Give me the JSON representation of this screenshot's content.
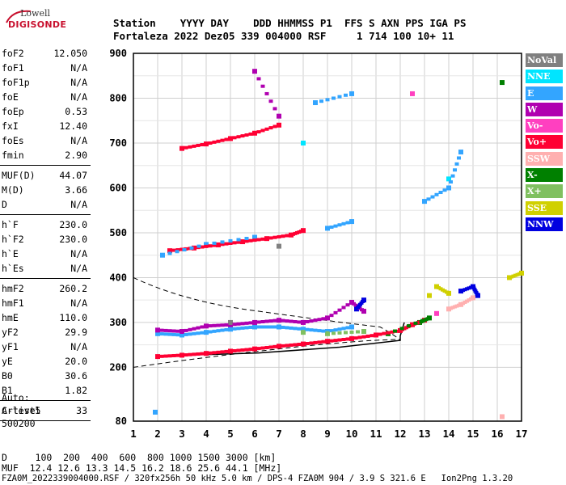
{
  "logo": {
    "top": "Lowell",
    "bottom": "DIGISONDE"
  },
  "header": {
    "line1": "Station    YYYY DAY    DDD HHMMSS P1  FFS S AXN PPS IGA PS",
    "line2": "Fortaleza 2022 Dez05 339 004000 RSF     1 714 100 10+ 11"
  },
  "params": [
    {
      "k": "foF2",
      "v": "12.050"
    },
    {
      "k": "foF1",
      "v": "N/A"
    },
    {
      "k": "foF1p",
      "v": "N/A"
    },
    {
      "k": "foE",
      "v": "N/A"
    },
    {
      "k": "foEp",
      "v": "0.53"
    },
    {
      "k": "fxI",
      "v": "12.40"
    },
    {
      "k": "foEs",
      "v": "N/A"
    },
    {
      "k": "fmin",
      "v": "2.90"
    },
    {
      "sep": true
    },
    {
      "k": "MUF(D)",
      "v": "44.07"
    },
    {
      "k": "M(D)",
      "v": "3.66"
    },
    {
      "k": "D",
      "v": "N/A"
    },
    {
      "sep": true
    },
    {
      "k": "h`F",
      "v": "230.0"
    },
    {
      "k": "h`F2",
      "v": "230.0"
    },
    {
      "k": "h`E",
      "v": "N/A"
    },
    {
      "k": "h`Es",
      "v": "N/A"
    },
    {
      "sep": true
    },
    {
      "k": "hmF2",
      "v": "260.2"
    },
    {
      "k": "hmF1",
      "v": "N/A"
    },
    {
      "k": "hmE",
      "v": "110.0"
    },
    {
      "k": "yF2",
      "v": "29.9"
    },
    {
      "k": "yF1",
      "v": "N/A"
    },
    {
      "k": "yE",
      "v": "20.0"
    },
    {
      "k": "B0",
      "v": "30.6"
    },
    {
      "k": "B1",
      "v": "1.82"
    },
    {
      "sep": true
    },
    {
      "k": "C-level",
      "v": "33"
    },
    {
      "sep": true
    }
  ],
  "auto": [
    "Auto:",
    "Artist5",
    "500200"
  ],
  "legend": [
    {
      "label": "NoVal",
      "color": "#808080"
    },
    {
      "label": "NNE",
      "color": "#00e5ff"
    },
    {
      "label": "E",
      "color": "#33a5ff"
    },
    {
      "label": "W",
      "color": "#b000b0"
    },
    {
      "label": "Vo-",
      "color": "#ff40c0"
    },
    {
      "label": "Vo+",
      "color": "#ff0033"
    },
    {
      "label": "SSW",
      "color": "#ffb0b0"
    },
    {
      "label": "X-",
      "color": "#008000"
    },
    {
      "label": "X+",
      "color": "#80c060"
    },
    {
      "label": "SSE",
      "color": "#d0d000"
    },
    {
      "label": "NNW",
      "color": "#0000e0"
    }
  ],
  "footer": {
    "line1": "D     100  200  400  600  800 1000 1500 3000 [km]",
    "line2": "MUF  12.4 12.6 13.3 14.5 16.2 18.6 25.6 44.1 [MHz]",
    "line3": "FZA0M_2022339004000.RSF / 320fx256h 50 kHz 5.0 km / DPS-4 FZA0M 904 / 3.9 S 321.6 E   Ion2Png 1.3.20"
  },
  "chart_data": {
    "type": "scatter",
    "title": "",
    "xlabel": "",
    "ylabel": "",
    "xlim": [
      1,
      17
    ],
    "ylim": [
      80,
      900
    ],
    "xticks": [
      1,
      2,
      3,
      4,
      5,
      6,
      7,
      8,
      9,
      10,
      11,
      12,
      13,
      14,
      15,
      16,
      17
    ],
    "yticks": [
      80,
      200,
      300,
      400,
      500,
      600,
      700,
      800,
      900
    ],
    "grid": true,
    "series": [
      {
        "name": "Vo+",
        "color": "#ff0033",
        "points": [
          [
            2.0,
            224
          ],
          [
            3.0,
            227
          ],
          [
            4.0,
            231
          ],
          [
            5.0,
            236
          ],
          [
            6.0,
            241
          ],
          [
            7.0,
            247
          ],
          [
            8.0,
            252
          ],
          [
            9.0,
            258
          ],
          [
            10.0,
            264
          ],
          [
            11.0,
            272
          ],
          [
            12.0,
            282
          ],
          [
            12.5,
            295
          ],
          [
            13.0,
            305
          ],
          [
            2.5,
            460
          ],
          [
            3.5,
            466
          ],
          [
            4.5,
            473
          ],
          [
            5.5,
            480
          ],
          [
            6.5,
            487
          ],
          [
            7.5,
            495
          ],
          [
            8.0,
            505
          ],
          [
            3.0,
            688
          ],
          [
            4.0,
            698
          ],
          [
            5.0,
            710
          ],
          [
            6.0,
            722
          ],
          [
            7.0,
            740
          ]
        ]
      },
      {
        "name": "E",
        "color": "#33a5ff",
        "points": [
          [
            2.0,
            275
          ],
          [
            3.0,
            272
          ],
          [
            4.0,
            278
          ],
          [
            5.0,
            285
          ],
          [
            6.0,
            290
          ],
          [
            7.0,
            290
          ],
          [
            8.0,
            285
          ],
          [
            9.0,
            280
          ],
          [
            10.0,
            290
          ],
          [
            1.9,
            100
          ],
          [
            2.2,
            450
          ],
          [
            4.0,
            474
          ],
          [
            6.0,
            490
          ],
          [
            9.0,
            510
          ],
          [
            10.0,
            525
          ],
          [
            13.0,
            570
          ],
          [
            14.0,
            600
          ],
          [
            14.5,
            680
          ],
          [
            8.5,
            790
          ],
          [
            10.0,
            810
          ]
        ]
      },
      {
        "name": "W",
        "color": "#b000b0",
        "points": [
          [
            2.0,
            283
          ],
          [
            3.0,
            280
          ],
          [
            4.0,
            292
          ],
          [
            5.0,
            295
          ],
          [
            6.0,
            300
          ],
          [
            7.0,
            305
          ],
          [
            8.0,
            300
          ],
          [
            9.0,
            310
          ],
          [
            10.0,
            345
          ],
          [
            10.5,
            325
          ],
          [
            6.0,
            860
          ],
          [
            7.0,
            760
          ]
        ]
      },
      {
        "name": "NNW",
        "color": "#0000e0",
        "points": [
          [
            14.5,
            370
          ],
          [
            15.0,
            380
          ],
          [
            15.2,
            360
          ],
          [
            10.2,
            330
          ],
          [
            10.5,
            350
          ]
        ]
      },
      {
        "name": "SSE",
        "color": "#d0d000",
        "points": [
          [
            13.5,
            380
          ],
          [
            14.0,
            365
          ],
          [
            16.5,
            400
          ],
          [
            17.0,
            410
          ],
          [
            13.2,
            360
          ]
        ]
      },
      {
        "name": "X-",
        "color": "#008000",
        "points": [
          [
            12.8,
            300
          ],
          [
            13.2,
            310
          ],
          [
            11.5,
            275
          ],
          [
            16.2,
            835
          ]
        ]
      },
      {
        "name": "X+",
        "color": "#80c060",
        "points": [
          [
            9.0,
            275
          ],
          [
            10.5,
            280
          ],
          [
            8.0,
            278
          ]
        ]
      },
      {
        "name": "SSW",
        "color": "#ffb0b0",
        "points": [
          [
            14.0,
            330
          ],
          [
            14.5,
            340
          ],
          [
            15.0,
            355
          ],
          [
            16.2,
            90
          ]
        ]
      },
      {
        "name": "Vo-",
        "color": "#ff40c0",
        "points": [
          [
            13.5,
            320
          ],
          [
            12.5,
            810
          ]
        ]
      },
      {
        "name": "NNE",
        "color": "#00e5ff",
        "points": [
          [
            8.0,
            700
          ],
          [
            14.0,
            620
          ]
        ]
      },
      {
        "name": "NoVal",
        "color": "#808080",
        "points": [
          [
            5.0,
            300
          ],
          [
            7.0,
            470
          ]
        ]
      }
    ]
  }
}
